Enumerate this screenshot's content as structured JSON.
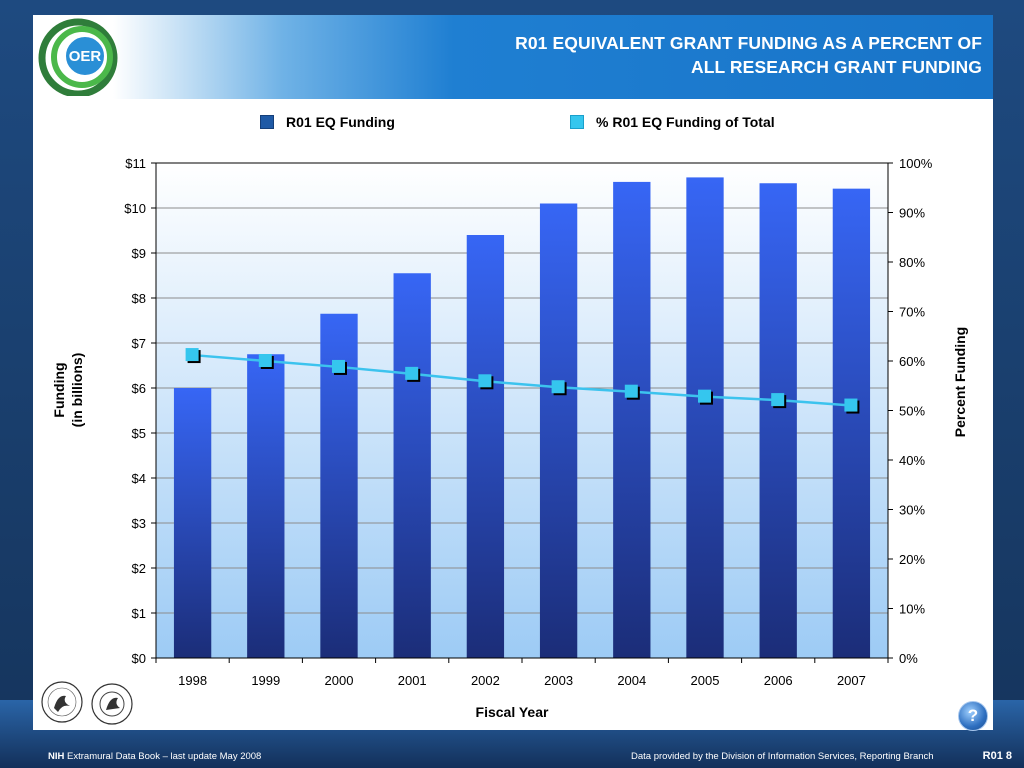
{
  "header": {
    "logo_text": "OER",
    "title_line1": "R01 EQUIVALENT GRANT FUNDING AS A PERCENT OF",
    "title_line2": "ALL RESEARCH GRANT FUNDING"
  },
  "chart_data": {
    "type": "bar",
    "categories": [
      "1998",
      "1999",
      "2000",
      "2001",
      "2002",
      "2003",
      "2004",
      "2005",
      "2006",
      "2007"
    ],
    "series": [
      {
        "name": "R01 EQ Funding",
        "type": "bar",
        "axis": "left",
        "values": [
          6.0,
          6.75,
          7.65,
          8.55,
          9.4,
          10.1,
          10.58,
          10.68,
          10.55,
          10.43
        ]
      },
      {
        "name": "% R01 EQ Funding of Total",
        "type": "line",
        "axis": "right",
        "values": [
          61.2,
          60.0,
          58.8,
          57.4,
          55.9,
          54.7,
          53.8,
          52.8,
          52.1,
          51.0
        ]
      }
    ],
    "xlabel": "Fiscal Year",
    "ylabel_left_line1": "Funding",
    "ylabel_left_line2": "(in billions)",
    "ylabel_right": "Percent Funding",
    "ylim_left": [
      0,
      11
    ],
    "ylim_right": [
      0,
      100
    ],
    "left_ticks": [
      "$0",
      "$1",
      "$2",
      "$3",
      "$4",
      "$5",
      "$6",
      "$7",
      "$8",
      "$9",
      "$10",
      "$11"
    ],
    "right_ticks": [
      "0%",
      "10%",
      "20%",
      "30%",
      "40%",
      "50%",
      "60%",
      "70%",
      "80%",
      "90%",
      "100%"
    ],
    "grid": true,
    "legend_position": "top"
  },
  "colors": {
    "bar_top": "#3766f5",
    "bar_bottom": "#1b2d78",
    "line": "#3cc3ee",
    "marker": "#35c6ee",
    "plot_bg_top": "#ffffff",
    "plot_bg_bottom": "#9dcbf5",
    "title_band": "#1874c8"
  },
  "footer": {
    "nih_label": "NIH",
    "left_text": "Extramural Data Book – last update May 2008",
    "right_text": "Data provided by the Division of Information Services, Reporting Branch",
    "page_label": "R01 8",
    "help_label": "?"
  },
  "seals": {
    "hhs_icon": "hhs-seal-icon",
    "nih_icon": "nih-seal-icon"
  }
}
